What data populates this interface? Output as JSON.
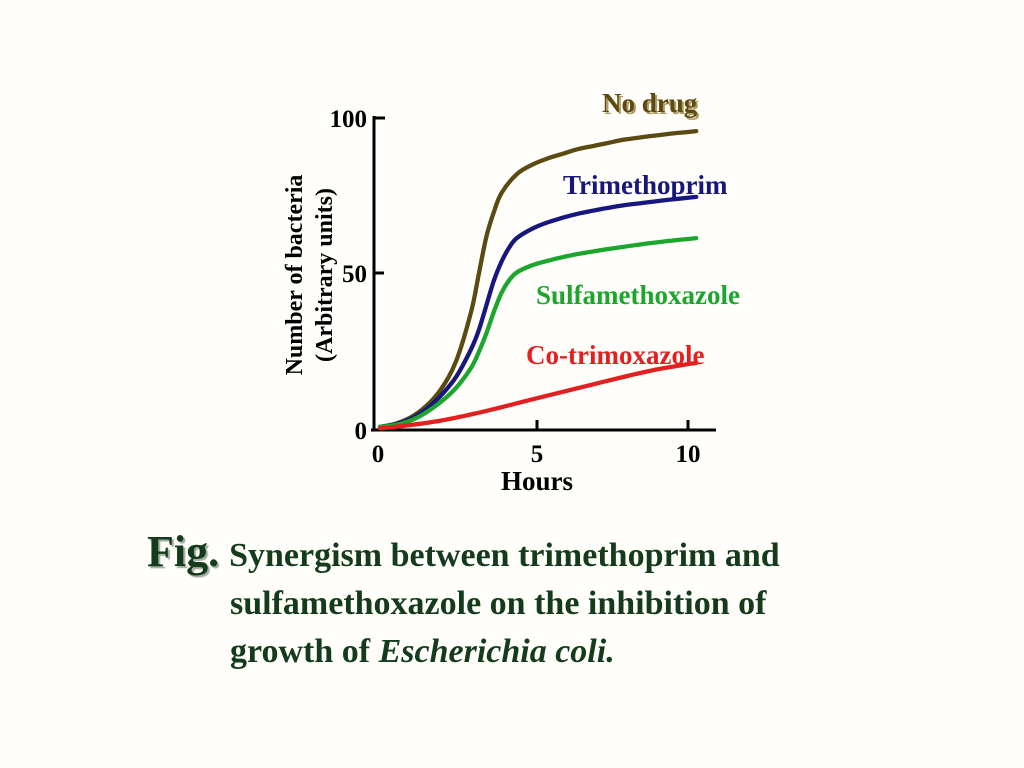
{
  "slide": {
    "background": "#fffefa"
  },
  "chart_data": {
    "type": "line",
    "title": "",
    "xlabel": "Hours",
    "ylabel_line1": "Number of bacteria",
    "ylabel_line2": "(Arbitrary units)",
    "xlim": [
      0,
      10.5
    ],
    "ylim": [
      0,
      100
    ],
    "x_ticks": [
      0,
      5,
      10
    ],
    "y_ticks": [
      0,
      50,
      100
    ],
    "x_tick_labels": [
      "0",
      "5",
      "10"
    ],
    "y_tick_labels": [
      "0",
      "50",
      "100"
    ],
    "grid": false,
    "legend_position": "inline-labels-on-chart",
    "axis_color": "#000000",
    "series": [
      {
        "name": "No drug",
        "color": "#5b4a12",
        "label_shadow": "#b39c62",
        "points": [
          [
            0,
            1
          ],
          [
            0.5,
            2
          ],
          [
            1,
            4
          ],
          [
            1.5,
            7.5
          ],
          [
            2,
            13
          ],
          [
            2.5,
            22
          ],
          [
            3,
            38
          ],
          [
            3.25,
            50
          ],
          [
            3.5,
            62
          ],
          [
            3.75,
            70
          ],
          [
            4,
            76
          ],
          [
            4.5,
            82
          ],
          [
            5,
            85
          ],
          [
            5.5,
            87
          ],
          [
            6,
            88.5
          ],
          [
            6.5,
            90
          ],
          [
            7,
            91
          ],
          [
            7.5,
            92
          ],
          [
            8,
            93
          ],
          [
            8.5,
            93.7
          ],
          [
            9,
            94.3
          ],
          [
            9.5,
            94.9
          ],
          [
            10,
            95.4
          ],
          [
            10.4,
            95.8
          ]
        ]
      },
      {
        "name": "Trimethoprim",
        "color": "#17177e",
        "points": [
          [
            0,
            1
          ],
          [
            0.5,
            1.8
          ],
          [
            1,
            3.5
          ],
          [
            1.5,
            6.5
          ],
          [
            2,
            11
          ],
          [
            2.5,
            17
          ],
          [
            3,
            26
          ],
          [
            3.25,
            32
          ],
          [
            3.5,
            40
          ],
          [
            3.75,
            48
          ],
          [
            4,
            54
          ],
          [
            4.25,
            58.5
          ],
          [
            4.5,
            61.5
          ],
          [
            5,
            64.5
          ],
          [
            5.5,
            66.5
          ],
          [
            6,
            68
          ],
          [
            6.5,
            69.3
          ],
          [
            7,
            70.3
          ],
          [
            7.5,
            71.2
          ],
          [
            8,
            72
          ],
          [
            8.5,
            72.6
          ],
          [
            9,
            73.2
          ],
          [
            9.5,
            73.8
          ],
          [
            10,
            74.3
          ],
          [
            10.4,
            74.7
          ]
        ]
      },
      {
        "name": "Sulfamethoxazole",
        "color": "#1ca62e",
        "points": [
          [
            0,
            1
          ],
          [
            0.5,
            1.6
          ],
          [
            1,
            3
          ],
          [
            1.5,
            5.5
          ],
          [
            2,
            9
          ],
          [
            2.5,
            13.5
          ],
          [
            3,
            20
          ],
          [
            3.25,
            25
          ],
          [
            3.5,
            31
          ],
          [
            3.75,
            38
          ],
          [
            4,
            44
          ],
          [
            4.25,
            48
          ],
          [
            4.5,
            50.5
          ],
          [
            5,
            52.8
          ],
          [
            5.5,
            54.2
          ],
          [
            6,
            55.4
          ],
          [
            6.5,
            56.4
          ],
          [
            7,
            57.2
          ],
          [
            7.5,
            58
          ],
          [
            8,
            58.7
          ],
          [
            8.5,
            59.4
          ],
          [
            9,
            60
          ],
          [
            9.5,
            60.6
          ],
          [
            10,
            61.1
          ],
          [
            10.4,
            61.5
          ]
        ]
      },
      {
        "name": "Co-trimoxazole",
        "color": "#e32020",
        "points": [
          [
            0,
            0.5
          ],
          [
            1,
            1.6
          ],
          [
            2,
            3
          ],
          [
            3,
            5
          ],
          [
            4,
            7.3
          ],
          [
            5,
            9.8
          ],
          [
            6,
            12.2
          ],
          [
            7,
            14.6
          ],
          [
            8,
            17
          ],
          [
            9,
            19.2
          ],
          [
            10,
            20.9
          ],
          [
            10.4,
            21.5
          ]
        ]
      }
    ]
  },
  "caption": {
    "fig_label": "Fig.",
    "line1": "Synergism between trimethoprim and",
    "line2": "sulfamethoxazole on the inhibition of",
    "line3_regular": "growth of ",
    "line3_italic": "Escherichia coli.",
    "color": "#143c1c"
  }
}
